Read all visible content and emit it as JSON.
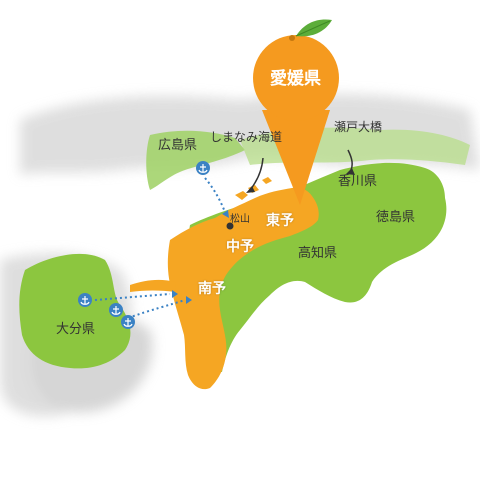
{
  "map": {
    "title": "愛媛県",
    "colors": {
      "ehime": "#f5a623",
      "shikoku": "#8cc63f",
      "honshu_kyushu": "#a3d36b",
      "mainland_grey": "#d9d9d9",
      "route": "#3b82c4",
      "port": "#3b82c4",
      "orange": "#f59a1f",
      "leaf": "#5cad3a"
    },
    "labels": {
      "hiroshima": "広島県",
      "shimanami": "しまなみ海道",
      "seto_ohashi": "瀬戸大橋",
      "kagawa": "香川県",
      "tokushima": "徳島県",
      "kochi": "高知県",
      "matsuyama": "松山",
      "toyo": "東予",
      "chuyo": "中予",
      "nanyo": "南予",
      "oita": "大分県"
    },
    "icons": {
      "port": "anchor-icon",
      "city": "city-dot-icon",
      "orange": "mikan-orange-icon"
    }
  }
}
